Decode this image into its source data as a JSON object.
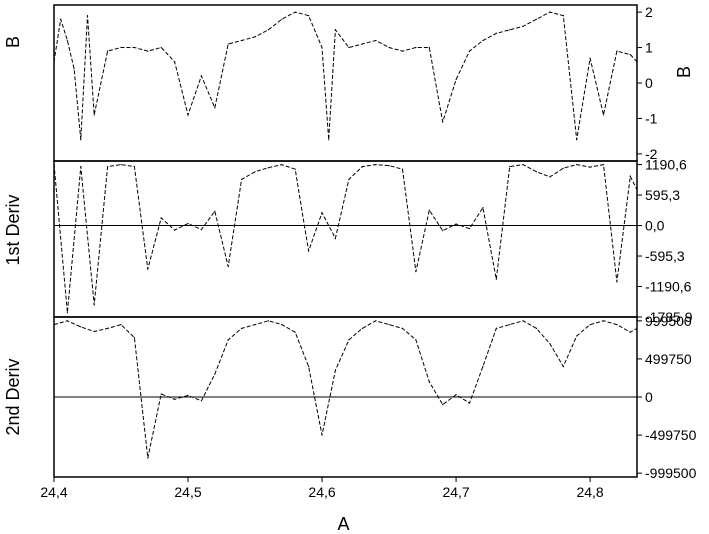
{
  "chart_data": [
    {
      "type": "line",
      "panel": "B",
      "ylabel_left": "B",
      "ylabel_right": "B",
      "xlim": [
        24.4,
        24.835
      ],
      "ylim": [
        -2.2,
        2.2
      ],
      "yticks": [
        2,
        1,
        0,
        -1,
        -2
      ],
      "ytick_labels": [
        "2",
        "1",
        "0",
        "-1",
        "-2"
      ],
      "zero_line": false,
      "line_style": "dashed",
      "series": [
        {
          "x": [
            24.4,
            24.405,
            24.41,
            24.415,
            24.42,
            24.425,
            24.43,
            24.44,
            24.45,
            24.46,
            24.47,
            24.48,
            24.49,
            24.5,
            24.51,
            24.52,
            24.53,
            24.54,
            24.55,
            24.56,
            24.57,
            24.58,
            24.59,
            24.6,
            24.605,
            24.61,
            24.62,
            24.63,
            24.64,
            24.65,
            24.66,
            24.67,
            24.68,
            24.69,
            24.7,
            24.71,
            24.72,
            24.73,
            24.74,
            24.75,
            24.76,
            24.77,
            24.78,
            24.79,
            24.8,
            24.81,
            24.82,
            24.83,
            24.835
          ],
          "y": [
            0.6,
            1.8,
            1.2,
            0.4,
            -1.6,
            1.9,
            -0.9,
            0.9,
            1.0,
            1.0,
            0.9,
            1.0,
            0.6,
            -0.9,
            0.2,
            -0.7,
            1.1,
            1.2,
            1.3,
            1.5,
            1.8,
            2.0,
            1.9,
            1.0,
            -1.6,
            1.5,
            1.0,
            1.1,
            1.2,
            1.0,
            0.9,
            1.0,
            1.0,
            -1.1,
            0.1,
            0.9,
            1.2,
            1.4,
            1.5,
            1.6,
            1.8,
            2.0,
            1.9,
            -1.6,
            0.7,
            -0.9,
            0.9,
            0.8,
            0.6
          ]
        }
      ]
    },
    {
      "type": "line",
      "panel": "1st Deriv",
      "ylabel_left": "1st Deriv",
      "xlim": [
        24.4,
        24.835
      ],
      "ylim": [
        -1785.9,
        1260
      ],
      "yticks": [
        1190.6,
        595.3,
        0.0,
        -595.3,
        -1190.6,
        -1785.9
      ],
      "ytick_labels": [
        "1190,6",
        "595,3",
        "0,0",
        "-595,3",
        "-1190,6",
        "-1785,9"
      ],
      "zero_line": true,
      "line_style": "dashed",
      "series": [
        {
          "x": [
            24.4,
            24.41,
            24.42,
            24.43,
            24.44,
            24.45,
            24.46,
            24.47,
            24.48,
            24.49,
            24.5,
            24.51,
            24.52,
            24.53,
            24.54,
            24.55,
            24.56,
            24.57,
            24.58,
            24.59,
            24.6,
            24.61,
            24.62,
            24.63,
            24.64,
            24.65,
            24.66,
            24.67,
            24.68,
            24.69,
            24.7,
            24.71,
            24.72,
            24.73,
            24.74,
            24.75,
            24.76,
            24.77,
            24.78,
            24.79,
            24.8,
            24.81,
            24.82,
            24.83,
            24.835
          ],
          "y": [
            1200,
            -1700,
            1150,
            -1550,
            1150,
            1190,
            1150,
            -850,
            150,
            -90,
            40,
            -80,
            280,
            -800,
            900,
            1050,
            1130,
            1190,
            1100,
            -500,
            250,
            -250,
            900,
            1150,
            1190,
            1170,
            1100,
            -900,
            300,
            -100,
            30,
            -60,
            350,
            -1050,
            1150,
            1190,
            1050,
            950,
            1120,
            1190,
            1140,
            1190,
            -1100,
            960,
            700
          ]
        }
      ]
    },
    {
      "type": "line",
      "panel": "2nd Deriv",
      "ylabel_left": "2nd Deriv",
      "xlabel": "A",
      "xlim": [
        24.4,
        24.835
      ],
      "ylim": [
        -1050000,
        1050000
      ],
      "yticks": [
        999500,
        499750,
        0,
        -499750,
        -999500
      ],
      "ytick_labels": [
        "999500",
        "499750",
        "0",
        "-499750",
        "-999500"
      ],
      "xticks": [
        24.4,
        24.5,
        24.6,
        24.7,
        24.8
      ],
      "xtick_labels": [
        "24,4",
        "24,5",
        "24,6",
        "24,7",
        "24,8"
      ],
      "zero_line": true,
      "line_style": "dashed",
      "series": [
        {
          "x": [
            24.4,
            24.41,
            24.42,
            24.43,
            24.44,
            24.45,
            24.46,
            24.47,
            24.48,
            24.49,
            24.5,
            24.51,
            24.52,
            24.53,
            24.54,
            24.55,
            24.56,
            24.57,
            24.58,
            24.59,
            24.6,
            24.61,
            24.62,
            24.63,
            24.64,
            24.65,
            24.66,
            24.67,
            24.68,
            24.69,
            24.7,
            24.71,
            24.72,
            24.73,
            24.74,
            24.75,
            24.76,
            24.77,
            24.78,
            24.79,
            24.8,
            24.81,
            24.82,
            24.83,
            24.835
          ],
          "y": [
            950000,
            1000000,
            920000,
            860000,
            900000,
            950000,
            780000,
            -800000,
            40000,
            -30000,
            20000,
            -50000,
            300000,
            750000,
            900000,
            950000,
            1000000,
            950000,
            850000,
            400000,
            -500000,
            350000,
            750000,
            900000,
            1000000,
            950000,
            900000,
            750000,
            200000,
            -100000,
            30000,
            -80000,
            400000,
            900000,
            950000,
            1000000,
            900000,
            700000,
            400000,
            800000,
            950000,
            1000000,
            950000,
            850000,
            900000
          ]
        }
      ]
    }
  ]
}
